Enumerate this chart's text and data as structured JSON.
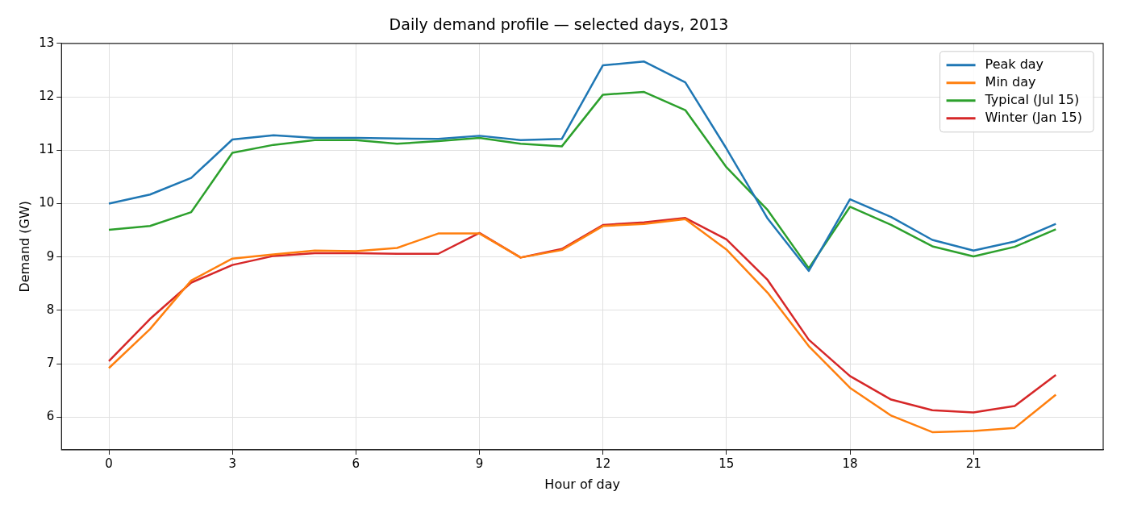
{
  "chart_data": {
    "type": "line",
    "title": "Daily demand profile — selected days, 2013",
    "xlabel": "Hour of day",
    "ylabel": "Demand (GW)",
    "x": [
      0,
      1,
      2,
      3,
      4,
      5,
      6,
      7,
      8,
      9,
      10,
      11,
      12,
      13,
      14,
      15,
      16,
      17,
      18,
      19,
      20,
      21,
      22,
      23
    ],
    "series": [
      {
        "name": "Peak day",
        "color": "#1f77b4",
        "values": [
          10.0,
          10.17,
          10.48,
          11.2,
          11.28,
          11.23,
          11.23,
          11.22,
          11.21,
          11.27,
          11.19,
          11.21,
          12.59,
          12.66,
          12.27,
          11.03,
          9.72,
          8.74,
          10.08,
          9.75,
          9.32,
          9.12,
          9.29,
          9.62
        ]
      },
      {
        "name": "Min day",
        "color": "#ff7f0e",
        "values": [
          6.92,
          7.65,
          8.56,
          8.97,
          9.05,
          9.12,
          9.11,
          9.17,
          9.44,
          9.44,
          8.99,
          9.13,
          9.58,
          9.62,
          9.71,
          9.14,
          8.33,
          7.33,
          6.55,
          6.03,
          5.72,
          5.74,
          5.8,
          6.42
        ]
      },
      {
        "name": "Typical (Jul 15)",
        "color": "#2ca02c",
        "values": [
          9.51,
          9.58,
          9.84,
          10.95,
          11.1,
          11.19,
          11.19,
          11.12,
          11.17,
          11.23,
          11.12,
          11.07,
          12.04,
          12.09,
          11.75,
          10.68,
          9.88,
          8.79,
          9.94,
          9.6,
          9.2,
          9.01,
          9.19,
          9.52
        ]
      },
      {
        "name": "Winter (Jan 15)",
        "color": "#d62728",
        "values": [
          7.05,
          7.84,
          8.52,
          8.85,
          9.02,
          9.07,
          9.07,
          9.06,
          9.06,
          9.45,
          8.99,
          9.15,
          9.6,
          9.65,
          9.73,
          9.33,
          8.57,
          7.45,
          6.77,
          6.33,
          6.13,
          6.09,
          6.21,
          6.79
        ]
      }
    ],
    "xlim": [
      -1.15,
      24.15
    ],
    "xticks": [
      0,
      3,
      6,
      9,
      12,
      15,
      18,
      21
    ],
    "ylim": [
      5.39,
      13
    ],
    "yticks": [
      6,
      7,
      8,
      9,
      10,
      11,
      12,
      13
    ],
    "grid": true,
    "legend": "top right",
    "marker": "none",
    "line_style": "solid"
  }
}
